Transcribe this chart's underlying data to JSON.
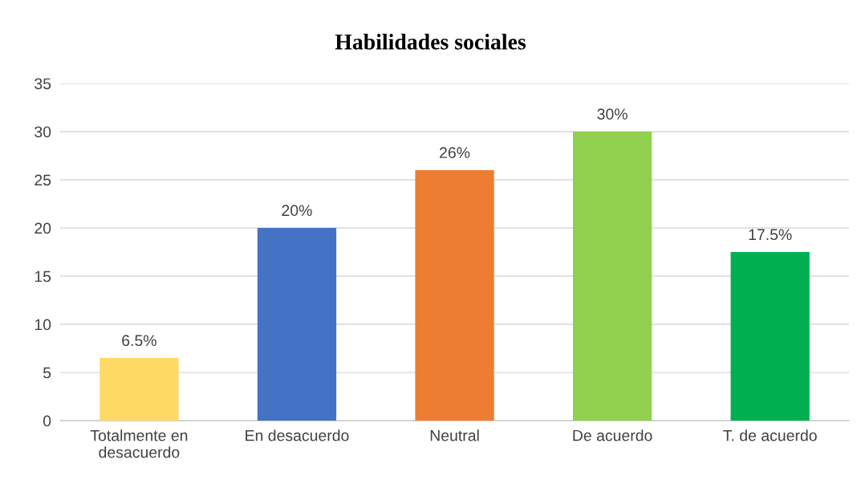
{
  "chart_data": {
    "type": "bar",
    "title": "Habilidades sociales",
    "categories": [
      "Totalmente en\ndesacuerdo",
      "En desacuerdo",
      "Neutral",
      "De acuerdo",
      "T. de acuerdo"
    ],
    "values": [
      6.5,
      20,
      26,
      30,
      17.5
    ],
    "value_labels": [
      "6.5%",
      "20%",
      "26%",
      "30%",
      "17.5%"
    ],
    "colors": [
      "#ffd966",
      "#4472c4",
      "#ed7d31",
      "#92d050",
      "#00b050"
    ],
    "ylim": [
      0,
      35
    ],
    "yticks": [
      0,
      5,
      10,
      15,
      20,
      25,
      30,
      35
    ],
    "grid": "y",
    "legend": false
  }
}
